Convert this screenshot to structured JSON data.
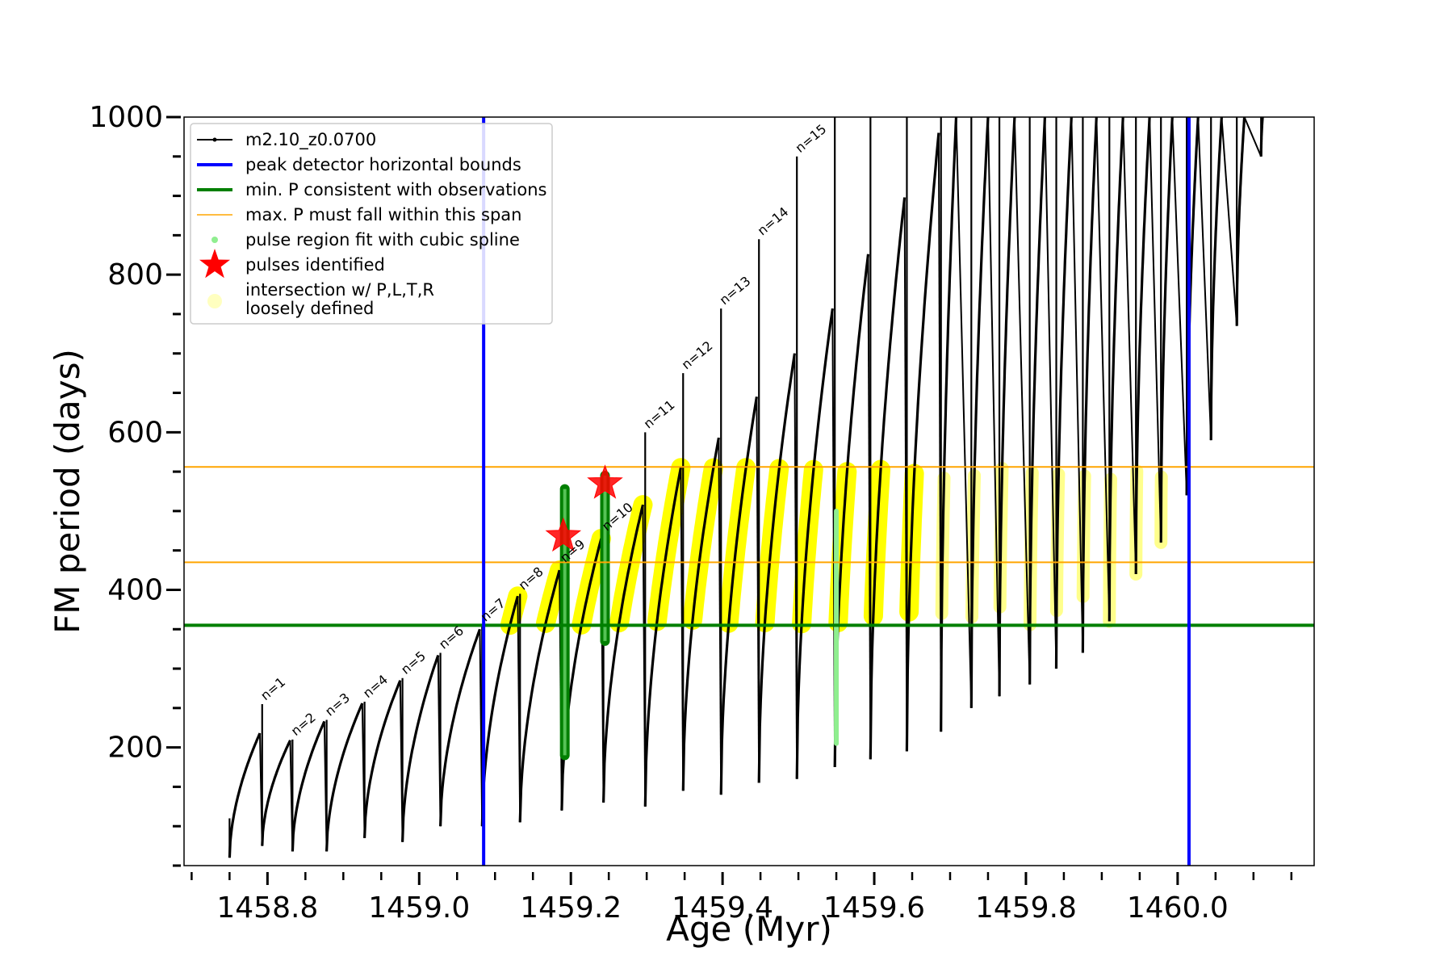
{
  "chart_data": {
    "type": "line",
    "xlabel": "Age (Myr)",
    "ylabel": "FM period (days)",
    "xlim": [
      1458.69,
      1460.18
    ],
    "ylim": [
      50,
      1000
    ],
    "xticks": [
      {
        "value": 1458.8,
        "label": "1458.8"
      },
      {
        "value": 1459.0,
        "label": "1459.0"
      },
      {
        "value": 1459.2,
        "label": "1459.2"
      },
      {
        "value": 1459.4,
        "label": "1459.4"
      },
      {
        "value": 1459.6,
        "label": "1459.6"
      },
      {
        "value": 1459.8,
        "label": "1459.8"
      },
      {
        "value": 1460.0,
        "label": "1460.0"
      }
    ],
    "yticks": [
      {
        "value": 200,
        "label": "200"
      },
      {
        "value": 400,
        "label": "400"
      },
      {
        "value": 600,
        "label": "600"
      },
      {
        "value": 800,
        "label": "800"
      },
      {
        "value": 1000,
        "label": "1000"
      }
    ],
    "grid": false,
    "legend_position": "top-left",
    "legend": [
      {
        "label": "m2.10_z0.0700",
        "marker": "line-dot",
        "color": "#000000"
      },
      {
        "label": "peak detector horizontal bounds",
        "marker": "line",
        "color": "#0000ff"
      },
      {
        "label": "min. P consistent with observations",
        "marker": "line",
        "color": "#007f00"
      },
      {
        "label": "max. P must fall within this span",
        "marker": "thin-line",
        "color": "#ffa500"
      },
      {
        "label": "pulse region fit with cubic spline",
        "marker": "dot",
        "color": "#90ee90"
      },
      {
        "label": "pulses identified",
        "marker": "star",
        "color": "#ff0000"
      },
      {
        "label": "intersection w/ P,L,T,R\nloosely defined",
        "marker": "circle",
        "color": "#ffffc0"
      }
    ],
    "series": [
      {
        "name": "m2.10_z0.0700",
        "color": "#000000",
        "pulses": [
          {
            "start_x": 1458.75,
            "start_y": 60,
            "peak_x": 1458.79,
            "peak_y": 218,
            "spike_y": 110
          },
          {
            "start_x": 1458.793,
            "start_y": 75,
            "peak_x": 1458.83,
            "peak_y": 209,
            "spike_y": 255
          },
          {
            "start_x": 1458.833,
            "start_y": 68,
            "peak_x": 1458.875,
            "peak_y": 233,
            "spike_y": 210
          },
          {
            "start_x": 1458.878,
            "start_y": 68,
            "peak_x": 1458.925,
            "peak_y": 256,
            "spike_y": 235
          },
          {
            "start_x": 1458.928,
            "start_y": 85,
            "peak_x": 1458.975,
            "peak_y": 285,
            "spike_y": 258
          },
          {
            "start_x": 1458.978,
            "start_y": 80,
            "peak_x": 1459.025,
            "peak_y": 317,
            "spike_y": 288
          },
          {
            "start_x": 1459.028,
            "start_y": 100,
            "peak_x": 1459.08,
            "peak_y": 350,
            "spike_y": 320
          },
          {
            "start_x": 1459.083,
            "start_y": 100,
            "peak_x": 1459.13,
            "peak_y": 392,
            "spike_y": 355
          },
          {
            "start_x": 1459.133,
            "start_y": 105,
            "peak_x": 1459.185,
            "peak_y": 425,
            "spike_y": 395
          },
          {
            "start_x": 1459.188,
            "start_y": 120,
            "peak_x": 1459.24,
            "peak_y": 465,
            "spike_y": 430
          },
          {
            "start_x": 1459.243,
            "start_y": 130,
            "peak_x": 1459.295,
            "peak_y": 508,
            "spike_y": 470
          },
          {
            "start_x": 1459.298,
            "start_y": 125,
            "peak_x": 1459.345,
            "peak_y": 555,
            "spike_y": 600
          },
          {
            "start_x": 1459.348,
            "start_y": 145,
            "peak_x": 1459.395,
            "peak_y": 593,
            "spike_y": 675
          },
          {
            "start_x": 1459.398,
            "start_y": 140,
            "peak_x": 1459.445,
            "peak_y": 645,
            "spike_y": 757
          },
          {
            "start_x": 1459.448,
            "start_y": 155,
            "peak_x": 1459.495,
            "peak_y": 700,
            "spike_y": 845
          },
          {
            "start_x": 1459.498,
            "start_y": 160,
            "peak_x": 1459.545,
            "peak_y": 757,
            "spike_y": 950
          },
          {
            "start_x": 1459.548,
            "start_y": 175,
            "peak_x": 1459.592,
            "peak_y": 826,
            "spike_y": 1000
          },
          {
            "start_x": 1459.595,
            "start_y": 185,
            "peak_x": 1459.64,
            "peak_y": 898,
            "spike_y": 1000
          },
          {
            "start_x": 1459.643,
            "start_y": 195,
            "peak_x": 1459.685,
            "peak_y": 980,
            "spike_y": 1000
          },
          {
            "start_x": 1459.688,
            "start_y": 220,
            "peak_x": 1459.708,
            "peak_y": 1000,
            "spike_y": 1000
          },
          {
            "start_x": 1459.728,
            "start_y": 250,
            "peak_x": 1459.75,
            "peak_y": 1000,
            "spike_y": 1000
          },
          {
            "start_x": 1459.765,
            "start_y": 265,
            "peak_x": 1459.785,
            "peak_y": 1000,
            "spike_y": 1000
          },
          {
            "start_x": 1459.805,
            "start_y": 280,
            "peak_x": 1459.825,
            "peak_y": 1000,
            "spike_y": 1000
          },
          {
            "start_x": 1459.84,
            "start_y": 300,
            "peak_x": 1459.86,
            "peak_y": 1000,
            "spike_y": 1000
          },
          {
            "start_x": 1459.875,
            "start_y": 320,
            "peak_x": 1459.893,
            "peak_y": 1000,
            "spike_y": 1000
          },
          {
            "start_x": 1459.91,
            "start_y": 360,
            "peak_x": 1459.928,
            "peak_y": 1000,
            "spike_y": 1000
          },
          {
            "start_x": 1459.945,
            "start_y": 420,
            "peak_x": 1459.963,
            "peak_y": 1000,
            "spike_y": 1000
          },
          {
            "start_x": 1459.978,
            "start_y": 460,
            "peak_x": 1459.993,
            "peak_y": 1000,
            "spike_y": 1000
          },
          {
            "start_x": 1460.012,
            "start_y": 520,
            "peak_x": 1460.027,
            "peak_y": 1000,
            "spike_y": 1000
          },
          {
            "start_x": 1460.044,
            "start_y": 590,
            "peak_x": 1460.058,
            "peak_y": 1000,
            "spike_y": 1000
          },
          {
            "start_x": 1460.078,
            "start_y": 735,
            "peak_x": 1460.088,
            "peak_y": 1000,
            "spike_y": 1000
          },
          {
            "start_x": 1460.11,
            "start_y": 950,
            "peak_x": 1460.112,
            "peak_y": 1000,
            "spike_y": 1000
          }
        ]
      }
    ],
    "hlines": [
      {
        "y": 355,
        "color": "#007f00",
        "label": "min. P consistent with observations"
      },
      {
        "y": 435,
        "color": "#ffa500",
        "label": "max. P must fall within this span"
      },
      {
        "y": 556,
        "color": "#ffa500",
        "label": "max. P must fall within this span"
      }
    ],
    "vlines": [
      {
        "x": 1459.085,
        "color": "#0000ff",
        "label": "peak detector horizontal bounds"
      },
      {
        "x": 1460.015,
        "color": "#0000ff",
        "label": "peak detector horizontal bounds"
      }
    ],
    "pulse_labels": [
      {
        "text": "n=1",
        "x": 1458.793,
        "y": 255
      },
      {
        "text": "n=2",
        "x": 1458.833,
        "y": 210
      },
      {
        "text": "n=3",
        "x": 1458.878,
        "y": 235
      },
      {
        "text": "n=4",
        "x": 1458.928,
        "y": 258
      },
      {
        "text": "n=5",
        "x": 1458.978,
        "y": 288
      },
      {
        "text": "n=6",
        "x": 1459.028,
        "y": 320
      },
      {
        "text": "n=7",
        "x": 1459.083,
        "y": 355
      },
      {
        "text": "n=8",
        "x": 1459.133,
        "y": 395
      },
      {
        "text": "n=9",
        "x": 1459.188,
        "y": 430
      },
      {
        "text": "n=10",
        "x": 1459.243,
        "y": 470
      },
      {
        "text": "n=11",
        "x": 1459.298,
        "y": 600
      },
      {
        "text": "n=12",
        "x": 1459.348,
        "y": 675
      },
      {
        "text": "n=13",
        "x": 1459.398,
        "y": 757
      },
      {
        "text": "n=14",
        "x": 1459.448,
        "y": 845
      },
      {
        "text": "n=15",
        "x": 1459.498,
        "y": 950
      }
    ],
    "pulses_identified": [
      {
        "x": 1459.19,
        "y": 468
      },
      {
        "x": 1459.245,
        "y": 535
      }
    ],
    "spline_regions": [
      {
        "x": 1459.192,
        "y_min": 190,
        "y_max": 528,
        "color": "#007f00"
      },
      {
        "x": 1459.245,
        "y_min": 335,
        "y_max": 545,
        "color": "#007f00"
      },
      {
        "x": 1459.55,
        "y_min": 205,
        "y_max": 500,
        "color": "#90ee90"
      }
    ],
    "intersection_band": {
      "y_min": 355,
      "y_max": 556
    }
  }
}
